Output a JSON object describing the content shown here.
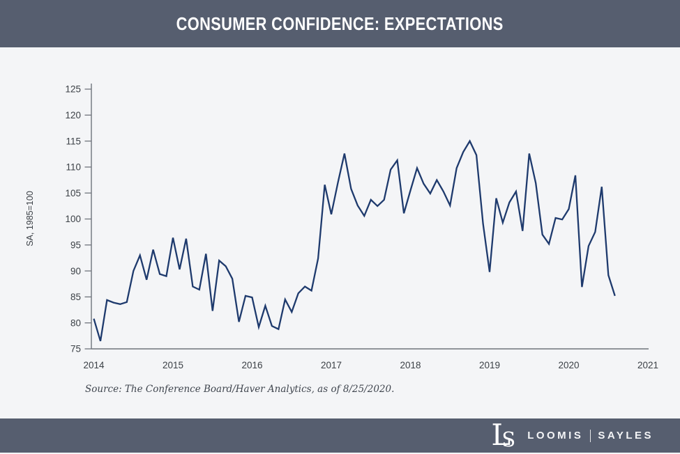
{
  "header": {
    "title": "CONSUMER CONFIDENCE: EXPECTATIONS"
  },
  "chart": {
    "y_axis_label": "SA, 1985=100",
    "y_ticks": [
      75,
      80,
      85,
      90,
      95,
      100,
      105,
      110,
      115,
      120,
      125
    ],
    "x_ticks": [
      2014,
      2015,
      2016,
      2017,
      2018,
      2019,
      2020,
      2021
    ],
    "source_note": "Source: The Conference Board/Haver Analytics, as of 8/25/2020."
  },
  "chart_data": {
    "type": "line",
    "title": "Consumer Confidence: Expectations",
    "ylabel": "SA, 1985=100",
    "ylim": [
      75,
      125
    ],
    "xlim_years": [
      2014,
      2021
    ],
    "grid": false,
    "legend": "none",
    "frequency": "monthly",
    "x_start": "2014-01",
    "x_end": "2020-08",
    "series": [
      {
        "name": "Consumer Confidence Expectations (SA, 1985=100)",
        "values": [
          80.8,
          76.5,
          84.4,
          83.9,
          83.6,
          84.0,
          90.0,
          93.0,
          88.3,
          94.1,
          89.4,
          89.0,
          96.4,
          90.3,
          96.2,
          87.0,
          86.4,
          93.3,
          82.3,
          92.0,
          90.9,
          88.5,
          80.2,
          85.2,
          84.9,
          79.2,
          83.3,
          79.4,
          78.8,
          84.5,
          82.1,
          85.7,
          87.0,
          86.2,
          92.4,
          106.6,
          100.9,
          107.0,
          112.6,
          105.8,
          102.6,
          100.6,
          103.7,
          102.5,
          103.7,
          109.5,
          111.3,
          101.1,
          105.5,
          109.8,
          106.8,
          104.9,
          107.5,
          105.3,
          102.6,
          109.8,
          112.9,
          115.0,
          112.3,
          99.1,
          89.8,
          104.0,
          99.3,
          103.2,
          105.3,
          97.7,
          112.6,
          106.9,
          97.0,
          95.2,
          100.2,
          99.9,
          101.9,
          108.4,
          86.9,
          94.8,
          97.5,
          106.2,
          89.2,
          85.2
        ]
      }
    ]
  },
  "footer": {
    "monogram": "LS",
    "wordmark_left": "LOOMIS",
    "wordmark_right": "SAYLES"
  },
  "colors": {
    "banner_bg": "#565e6f",
    "page_bg": "#f4f5f7",
    "line": "#1e3a6d",
    "axis": "#6f747c",
    "tick_text": "#3b4046",
    "source_text": "#3f454e",
    "logo_text": "#ffffff"
  }
}
